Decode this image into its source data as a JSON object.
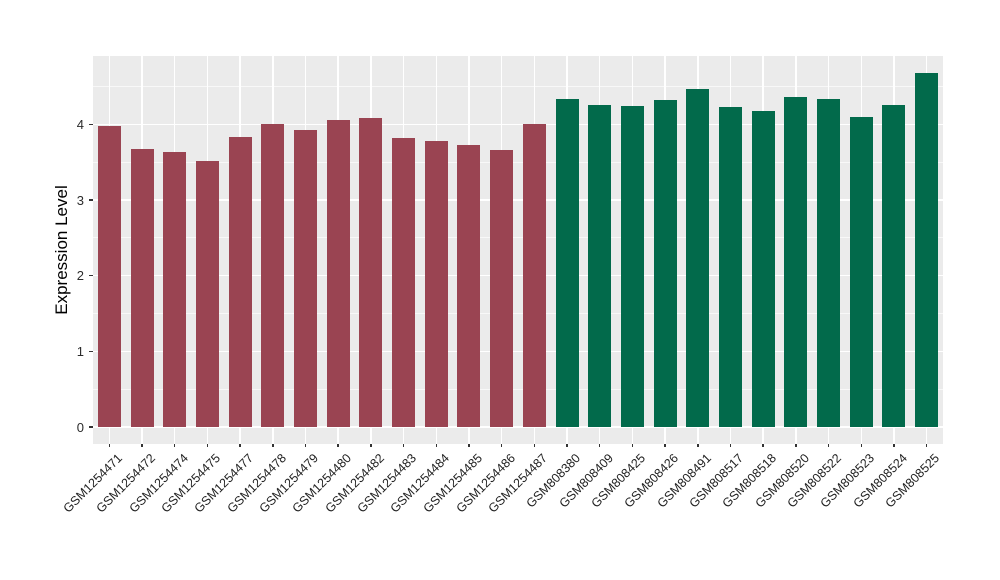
{
  "figure": {
    "background": "#ffffff",
    "panel_background": "#EBEBEB",
    "grid_major_color": "#FFFFFF",
    "grid_minor_color": "#FFFFFF",
    "tick_color": "#333333"
  },
  "chart_data": {
    "type": "bar",
    "title": "",
    "xlabel": "",
    "ylabel": "Expression Level",
    "ylim": [
      0,
      4.91
    ],
    "yticks": [
      0,
      1,
      2,
      3,
      4
    ],
    "grid": "major and minor horizontal white lines, vertical major line per category, ggplot gray panel",
    "legend_position": "none",
    "group_colors": {
      "group1": "#9A4452",
      "group2": "#026A4B"
    },
    "bars": [
      {
        "label": "GSM1254471",
        "value": 3.98,
        "group": "group1"
      },
      {
        "label": "GSM1254472",
        "value": 3.68,
        "group": "group1"
      },
      {
        "label": "GSM1254474",
        "value": 3.64,
        "group": "group1"
      },
      {
        "label": "GSM1254475",
        "value": 3.52,
        "group": "group1"
      },
      {
        "label": "GSM1254477",
        "value": 3.84,
        "group": "group1"
      },
      {
        "label": "GSM1254478",
        "value": 4.01,
        "group": "group1"
      },
      {
        "label": "GSM1254479",
        "value": 3.93,
        "group": "group1"
      },
      {
        "label": "GSM1254480",
        "value": 4.06,
        "group": "group1"
      },
      {
        "label": "GSM1254482",
        "value": 4.08,
        "group": "group1"
      },
      {
        "label": "GSM1254483",
        "value": 3.82,
        "group": "group1"
      },
      {
        "label": "GSM1254484",
        "value": 3.78,
        "group": "group1"
      },
      {
        "label": "GSM1254485",
        "value": 3.73,
        "group": "group1"
      },
      {
        "label": "GSM1254486",
        "value": 3.66,
        "group": "group1"
      },
      {
        "label": "GSM1254487",
        "value": 4.01,
        "group": "group1"
      },
      {
        "label": "GSM808380",
        "value": 4.33,
        "group": "group2"
      },
      {
        "label": "GSM808409",
        "value": 4.26,
        "group": "group2"
      },
      {
        "label": "GSM808425",
        "value": 4.24,
        "group": "group2"
      },
      {
        "label": "GSM808426",
        "value": 4.32,
        "group": "group2"
      },
      {
        "label": "GSM808491",
        "value": 4.47,
        "group": "group2"
      },
      {
        "label": "GSM808517",
        "value": 4.23,
        "group": "group2"
      },
      {
        "label": "GSM808518",
        "value": 4.18,
        "group": "group2"
      },
      {
        "label": "GSM808520",
        "value": 4.36,
        "group": "group2"
      },
      {
        "label": "GSM808522",
        "value": 4.33,
        "group": "group2"
      },
      {
        "label": "GSM808523",
        "value": 4.1,
        "group": "group2"
      },
      {
        "label": "GSM808524",
        "value": 4.26,
        "group": "group2"
      },
      {
        "label": "GSM808525",
        "value": 4.68,
        "group": "group2"
      }
    ]
  }
}
